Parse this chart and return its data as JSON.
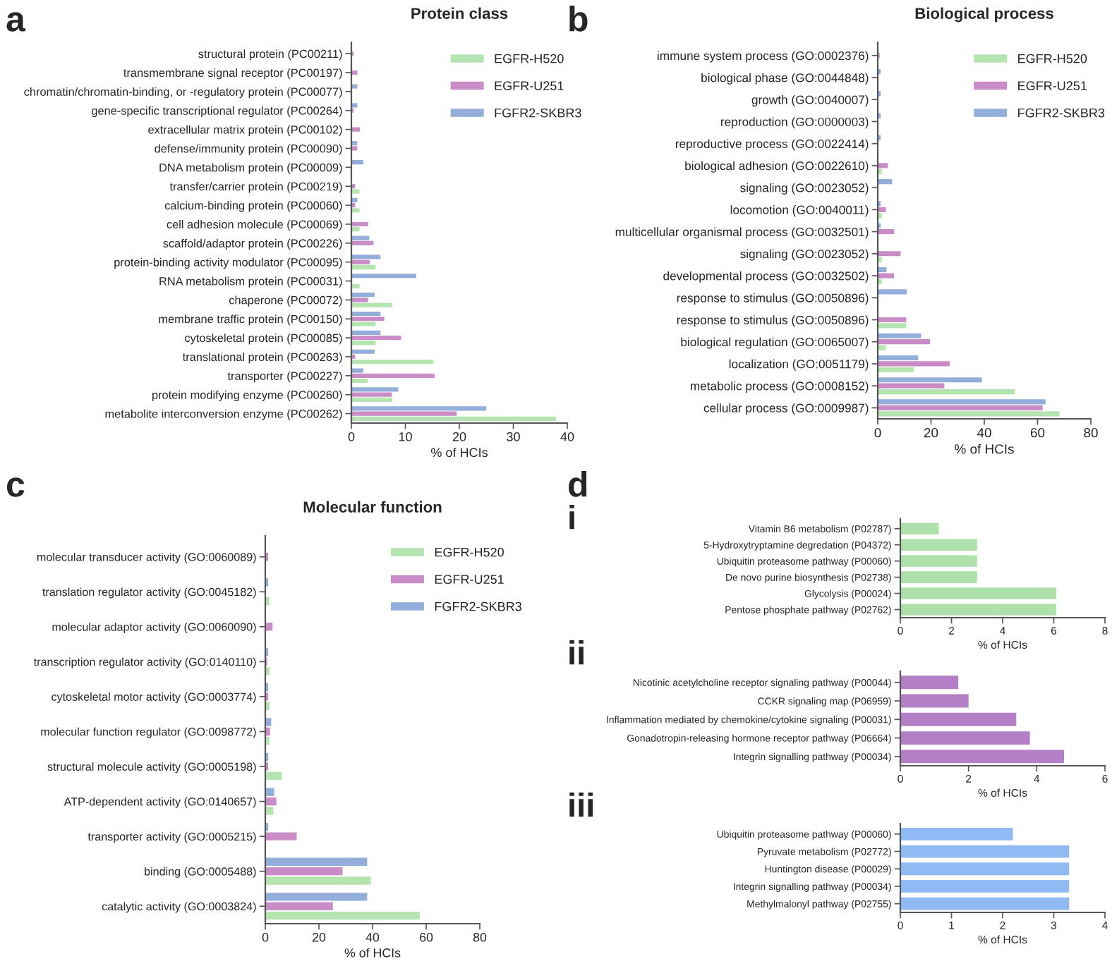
{
  "chart_data": [
    {
      "type": "bar",
      "orientation": "horizontal",
      "title": "Protein class",
      "xlabel": "% of HCIs",
      "annotations": [
        "a"
      ],
      "categories": [
        "structural protein (PC00211)",
        "transmembrane signal receptor (PC00197)",
        "chromatin/chromatin-binding, or -regulatory protein (PC00077)",
        "gene-specific transcriptional regulator (PC00264)",
        "extracellular matrix protein (PC00102)",
        "defense/immunity protein (PC00090)",
        "DNA metabolism protein (PC00009)",
        "transfer/carrier protein (PC00219)",
        "calcium-binding protein (PC00060)",
        "cell adhesion molecule (PC00069)",
        "scaffold/adaptor protein (PC00226)",
        "protein-binding activity modulator (PC00095)",
        "RNA metabolism protein (PC00031)",
        "chaperone (PC00072)",
        "membrane traffic protein (PC00150)",
        "cytoskeletal protein (PC00085)",
        "translational protein (PC00263)",
        "transporter (PC00227)",
        "protein modifying enzyme (PC00260)",
        "metabolite interconversion enzyme (PC00262)"
      ],
      "series": [
        {
          "name": "EGFR-H520",
          "color": "#b4e4b0",
          "values": [
            null,
            null,
            null,
            null,
            null,
            null,
            null,
            1.5,
            1.5,
            1.5,
            null,
            4.5,
            1.5,
            7.6,
            4.5,
            4.5,
            15.2,
            3.0,
            7.6,
            37.9
          ]
        },
        {
          "name": "EGFR-U251",
          "color": "#c98cc6",
          "values": [
            0.4,
            1.1,
            null,
            0.4,
            1.6,
            1.1,
            null,
            0.7,
            0.7,
            3.1,
            4.1,
            3.4,
            null,
            3.1,
            6.1,
            9.2,
            0.7,
            15.4,
            7.5,
            19.5
          ]
        },
        {
          "name": "FGFR2-SKBR3",
          "color": "#93aedb",
          "values": [
            null,
            null,
            1.1,
            1.1,
            null,
            1.1,
            2.2,
            null,
            1.1,
            null,
            3.3,
            5.4,
            12.0,
            4.3,
            5.4,
            5.4,
            4.3,
            2.2,
            8.7,
            25.0
          ]
        }
      ],
      "xlim": [
        0,
        40
      ],
      "xticks": [
        0,
        10,
        20,
        30,
        40
      ],
      "legend": "top right",
      "grid": false
    },
    {
      "type": "bar",
      "orientation": "horizontal",
      "title": "Biological process",
      "xlabel": "% of HCIs",
      "annotations": [
        "b"
      ],
      "categories": [
        "immune system process (GO:0002376)",
        "biological phase (GO:0044848)",
        "growth (GO:0040007)",
        "reproduction (GO:0000003)",
        "reproductive process (GO:0022414)",
        "biological adhesion (GO:0022610)",
        "signaling (GO:0023052)",
        "locomotion (GO:0040011)",
        "multicellular organismal process (GO:0032501)",
        "signaling (GO:0023052)",
        "developmental process (GO:0032502)",
        "response to stimulus (GO:0050896)",
        "response to stimulus (GO:0050896)",
        "biological regulation (GO:0065007)",
        "localization (GO:0051179)",
        "metabolic process (GO:0008152)",
        "cellular process (GO:0009987)"
      ],
      "series": [
        {
          "name": "EGFR-H520",
          "color": "#b4e4b0",
          "values": [
            null,
            null,
            null,
            null,
            null,
            1.5,
            null,
            1.5,
            null,
            1.5,
            1.5,
            null,
            10.6,
            3.0,
            13.6,
            51.5,
            68.2
          ]
        },
        {
          "name": "EGFR-U251",
          "color": "#c98cc6",
          "values": [
            0.7,
            null,
            null,
            null,
            null,
            3.8,
            null,
            3.1,
            6.1,
            8.6,
            6.1,
            null,
            10.7,
            19.6,
            27.0,
            25.0,
            61.9
          ]
        },
        {
          "name": "FGFR2-SKBR3",
          "color": "#93aedb",
          "values": [
            null,
            1.1,
            1.1,
            1.1,
            1.1,
            null,
            5.4,
            1.1,
            1.1,
            null,
            3.3,
            10.9,
            null,
            16.3,
            15.2,
            39.1,
            63.0
          ]
        }
      ],
      "xlim": [
        0,
        80
      ],
      "xticks": [
        0,
        20,
        40,
        60,
        80
      ],
      "legend": "top right",
      "grid": false
    },
    {
      "type": "bar",
      "orientation": "horizontal",
      "title": "Molecular function",
      "xlabel": "% of HCIs",
      "annotations": [
        "c"
      ],
      "categories": [
        "molecular transducer activity (GO:0060089)",
        "translation regulator activity (GO:0045182)",
        "molecular adaptor activity (GO:0060090)",
        "transcription regulator activity (GO:0140110)",
        "cytoskeletal motor activity (GO:0003774)",
        "molecular function regulator (GO:0098772)",
        "structural molecule activity (GO:0005198)",
        "ATP-dependent activity (GO:0140657)",
        "transporter activity (GO:0005215)",
        "binding (GO:0005488)",
        "catalytic activity (GO:0003824)"
      ],
      "series": [
        {
          "name": "EGFR-H520",
          "color": "#b4e4b0",
          "values": [
            null,
            1.5,
            null,
            1.5,
            1.5,
            1.5,
            6.1,
            3.0,
            null,
            39.4,
            57.6
          ]
        },
        {
          "name": "EGFR-U251",
          "color": "#c98cc6",
          "values": [
            1.1,
            null,
            2.7,
            0.7,
            1.1,
            1.8,
            1.1,
            4.1,
            11.7,
            28.8,
            25.2
          ]
        },
        {
          "name": "FGFR2-SKBR3",
          "color": "#93aedb",
          "values": [
            null,
            1.1,
            null,
            1.1,
            1.1,
            2.2,
            1.1,
            3.3,
            1.1,
            38.0,
            38.0
          ]
        }
      ],
      "xlim": [
        0,
        80
      ],
      "xticks": [
        0,
        20,
        40,
        60,
        80
      ],
      "legend": "top right",
      "grid": false
    },
    {
      "type": "bar",
      "orientation": "horizontal",
      "xlabel": "% of HCIs",
      "annotations": [
        "d",
        "i"
      ],
      "categories": [
        "Vitamin B6 metabolism (P02787)",
        "5-Hydroxytryptamine degredation (P04372)",
        "Ubiquitin proteasome pathway (P00060)",
        "De novo purine biosynthesis (P02738)",
        "Glycolysis (P00024)",
        "Pentose phosphate pathway (P02762)"
      ],
      "series": [
        {
          "color": "#aee0ab",
          "values": [
            1.5,
            3.0,
            3.0,
            3.0,
            6.1,
            6.1
          ]
        }
      ],
      "xlim": [
        0,
        8
      ],
      "xticks": [
        0,
        2,
        4,
        6,
        8
      ],
      "grid": false
    },
    {
      "type": "bar",
      "orientation": "horizontal",
      "xlabel": "% of HCIs",
      "annotations": [
        "ii"
      ],
      "categories": [
        "Nicotinic acetylcholine receptor signaling pathway (P00044)",
        "CCKR signaling map (P06959)",
        "Inflammation mediated by chemokine/cytokine signaling (P00031)",
        "Gonadotropin-releasing hormone receptor pathway (P06664)",
        "Integrin signalling pathway (P00034)"
      ],
      "series": [
        {
          "color": "#b47fc6",
          "values": [
            1.7,
            2.0,
            3.4,
            3.8,
            4.8
          ]
        }
      ],
      "xlim": [
        0,
        6
      ],
      "xticks": [
        0,
        2,
        4,
        6
      ],
      "grid": false
    },
    {
      "type": "bar",
      "orientation": "horizontal",
      "xlabel": "% of HCIs",
      "annotations": [
        "iii"
      ],
      "categories": [
        "Ubiquitin proteasome pathway (P00060)",
        "Pyruvate metabolism (P02772)",
        "Huntington disease (P00029)",
        "Integrin signalling pathway (P00034)",
        "Methylmalonyl pathway (P02755)"
      ],
      "series": [
        {
          "color": "#8fbaf3",
          "values": [
            2.2,
            3.3,
            3.3,
            3.3,
            3.3
          ]
        }
      ],
      "xlim": [
        0,
        4
      ],
      "xticks": [
        0,
        1,
        2,
        3,
        4
      ],
      "grid": false
    }
  ]
}
